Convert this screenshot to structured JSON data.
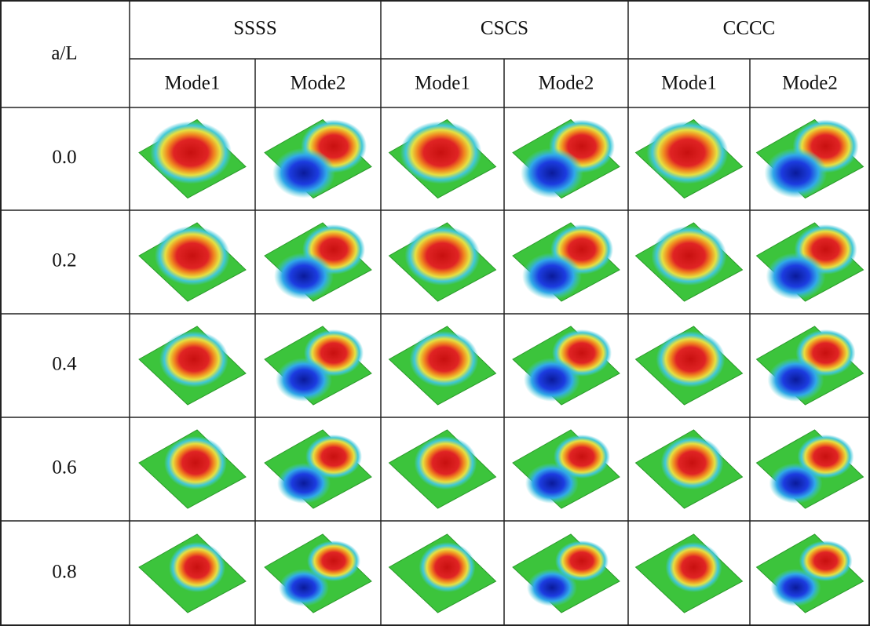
{
  "table": {
    "corner": "a/L",
    "groups": [
      "SSSS",
      "CSCS",
      "CCCC"
    ],
    "subheaders": [
      "Mode1",
      "Mode2",
      "Mode1",
      "Mode2",
      "Mode1",
      "Mode2"
    ],
    "rows": [
      "0.0",
      "0.2",
      "0.4",
      "0.6",
      "0.8"
    ]
  }
}
